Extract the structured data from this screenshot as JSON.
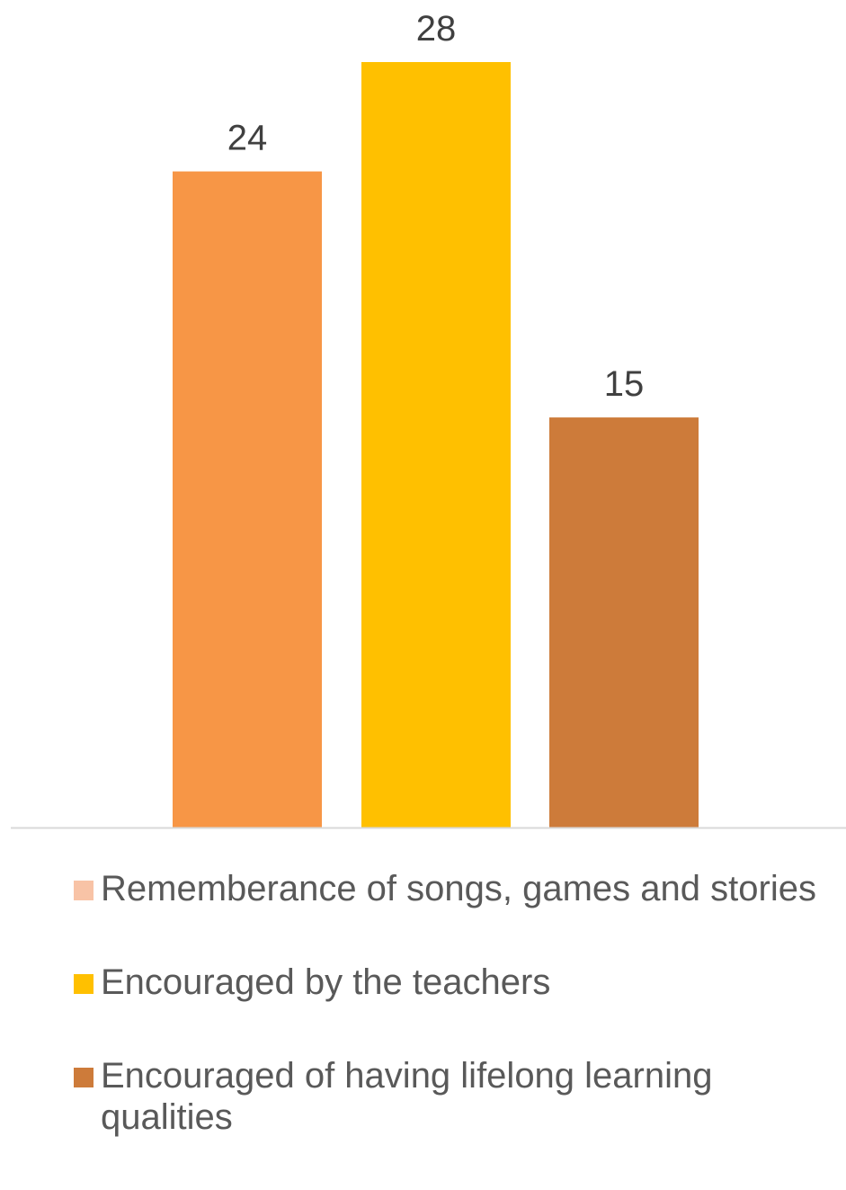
{
  "chart_data": {
    "type": "bar",
    "categories": [
      "Rememberance of songs, games and stories",
      "Encouraged by the teachers",
      "Encouraged of having lifelong learning qualities"
    ],
    "values": [
      24,
      28,
      15
    ],
    "colors": [
      "#F79646",
      "#FFC000",
      "#CD7B3A"
    ],
    "legend_colors": [
      "#F8C3A6",
      "#FFC000",
      "#CD7B3A"
    ],
    "ylim": [
      0,
      28
    ],
    "axis_color": "#D9D9D9",
    "data_labels": [
      "24",
      "28",
      "15"
    ],
    "legend_position": "bottom",
    "grid": false,
    "title": "",
    "xlabel": "",
    "ylabel": ""
  }
}
